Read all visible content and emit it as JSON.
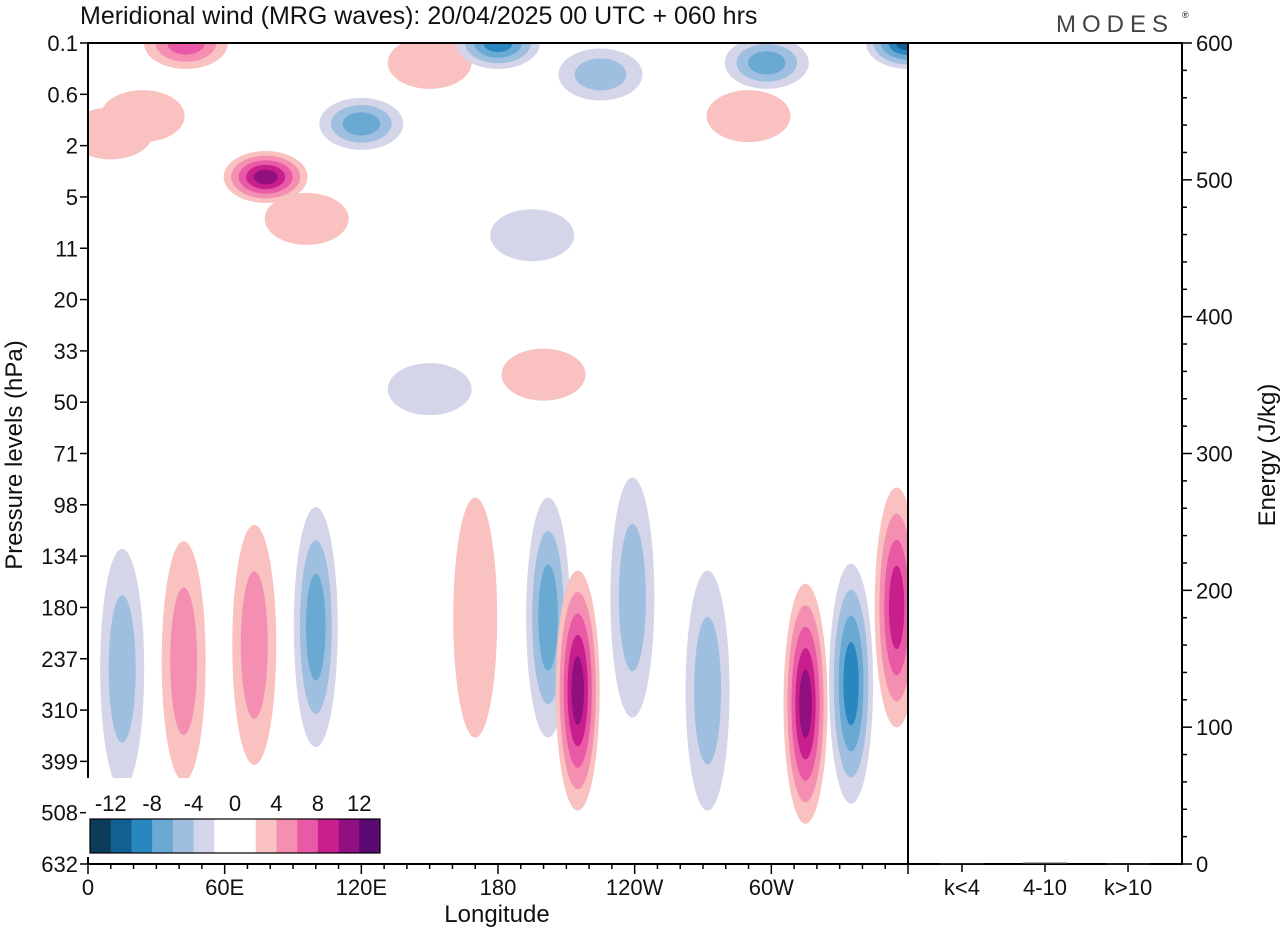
{
  "header": {
    "title": "Meridional wind (MRG waves):  20/04/2025  00 UTC  + 060 hrs",
    "brand": "MODES",
    "brand_mark": "®"
  },
  "chart_data": [
    {
      "type": "heatmap",
      "title": "Meridional wind (MRG waves):  20/04/2025  00 UTC  + 060 hrs",
      "xlabel": "Longitude",
      "ylabel": "Pressure levels (hPa)",
      "x_ticks": [
        "0",
        "60E",
        "120E",
        "180",
        "120W",
        "60W"
      ],
      "x_tick_values": [
        0,
        60,
        120,
        180,
        240,
        300
      ],
      "xlim": [
        0,
        360
      ],
      "y_ticks": [
        "0.1",
        "0.6",
        "2",
        "5",
        "11",
        "20",
        "33",
        "50",
        "71",
        "98",
        "134",
        "180",
        "237",
        "310",
        "399",
        "508",
        "632"
      ],
      "colorbar": {
        "labels": [
          "-12",
          "-8",
          "-4",
          "0",
          "4",
          "8",
          "12"
        ],
        "label_values": [
          -12,
          -8,
          -4,
          0,
          4,
          8,
          12
        ],
        "colors": [
          "#0d3b5a",
          "#12608f",
          "#2a86bf",
          "#6aa9d2",
          "#9fbfe0",
          "#d4d5e8",
          "#ffffff",
          "#ffffff",
          "#f9c2c0",
          "#f48fb1",
          "#e85aa5",
          "#c91f8c",
          "#901080",
          "#5c0a73"
        ],
        "bounds": [
          -14,
          -12,
          -10,
          -8,
          -6,
          -4,
          -2,
          0,
          2,
          4,
          6,
          8,
          10,
          12,
          14
        ]
      },
      "features": [
        {
          "lon": 10,
          "level": "1.5",
          "value": 3
        },
        {
          "lon": 24,
          "level": "1.0",
          "value": 3
        },
        {
          "lon": 43,
          "level": "0.1",
          "value": 7
        },
        {
          "lon": 78,
          "level": "3.5",
          "value": 10
        },
        {
          "lon": 96,
          "level": "7",
          "value": 3
        },
        {
          "lon": 120,
          "level": "1.2",
          "value": -6
        },
        {
          "lon": 150,
          "level": "0.2",
          "value": 3
        },
        {
          "lon": 180,
          "level": "0.1",
          "value": -9
        },
        {
          "lon": 195,
          "level": "9",
          "value": -3
        },
        {
          "lon": 200,
          "level": "40",
          "value": 3
        },
        {
          "lon": 150,
          "level": "45",
          "value": -3
        },
        {
          "lon": 225,
          "level": "0.3",
          "value": -4
        },
        {
          "lon": 298,
          "level": "0.2",
          "value": -6
        },
        {
          "lon": 360,
          "level": "0.1",
          "value": -10
        },
        {
          "lon": 290,
          "level": "1.0",
          "value": 3
        },
        {
          "lon": 15,
          "level": "250",
          "value": -5
        },
        {
          "lon": 42,
          "level": "240",
          "value": 5
        },
        {
          "lon": 73,
          "level": "220",
          "value": 5
        },
        {
          "lon": 100,
          "level": "200",
          "value": -6
        },
        {
          "lon": 170,
          "level": "190",
          "value": 3
        },
        {
          "lon": 202,
          "level": "190",
          "value": -6
        },
        {
          "lon": 215,
          "level": "280",
          "value": 10
        },
        {
          "lon": 239,
          "level": "170",
          "value": -5
        },
        {
          "lon": 272,
          "level": "280",
          "value": -5
        },
        {
          "lon": 315,
          "level": "300",
          "value": 10
        },
        {
          "lon": 335,
          "level": "270",
          "value": -9
        },
        {
          "lon": 355,
          "level": "180",
          "value": 8
        }
      ]
    },
    {
      "type": "bar",
      "categories": [
        "k<4",
        "4-10",
        "k>10"
      ],
      "values": [
        0.5,
        1.0,
        0.4
      ],
      "ylabel": "Energy (J/kg)",
      "ylim": [
        0,
        600
      ],
      "y_ticks": [
        0,
        100,
        200,
        300,
        400,
        500,
        600
      ]
    }
  ]
}
